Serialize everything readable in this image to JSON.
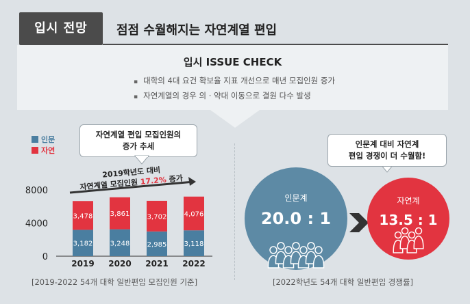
{
  "header": {
    "tag": "입시 전망",
    "headline": "점점 수월해지는 자연계열 편입"
  },
  "issue": {
    "title": "입시 ISSUE CHECK",
    "items": [
      "대학의 4대 요건 확보율 지표 개선으로 매년 모집인원 증가",
      "자연계열의 경우 의 · 약대 이동으로 결원 다수 발생"
    ]
  },
  "colors": {
    "humanities": "#4a7ea0",
    "natural": "#e23440",
    "arrow": "#333333"
  },
  "legend": {
    "humanities": "인문",
    "natural": "자연"
  },
  "left_callout": {
    "line1": "자연계열 편입 모집인원의",
    "line2": "증가 추세"
  },
  "trend": {
    "line1": "2019학년도 대비",
    "line2_prefix": "자연계열 모집인원 ",
    "percent": "17.2%",
    "line2_suffix": " 증가"
  },
  "chart_data": {
    "type": "bar",
    "stacked": true,
    "categories": [
      "2019",
      "2020",
      "2021",
      "2022"
    ],
    "series": [
      {
        "name": "인문",
        "values": [
          3182,
          3248,
          2985,
          3118
        ]
      },
      {
        "name": "자연",
        "values": [
          3478,
          3861,
          3702,
          4076
        ]
      }
    ],
    "yticks": [
      "0",
      "4000",
      "8000"
    ],
    "ylim": [
      0,
      8000
    ],
    "data_labels": [
      [
        "3,182",
        "3,248",
        "2,985",
        "3,118"
      ],
      [
        "3,478",
        "3,861",
        "3,702",
        "4,076"
      ]
    ]
  },
  "left_footer": "[2019-2022 54개 대학 일반편입 모집인원 기준]",
  "right_callout": {
    "line1": "인문계 대비 자연계",
    "line2": "편입 경쟁이 더 수월함!"
  },
  "competition": {
    "humanities": {
      "label": "인문계",
      "ratio": "20.0 : 1"
    },
    "natural": {
      "label": "자연계",
      "ratio": "13.5 : 1"
    }
  },
  "right_footer": "[2022학년도 54개 대학 일반편입 경쟁률]"
}
